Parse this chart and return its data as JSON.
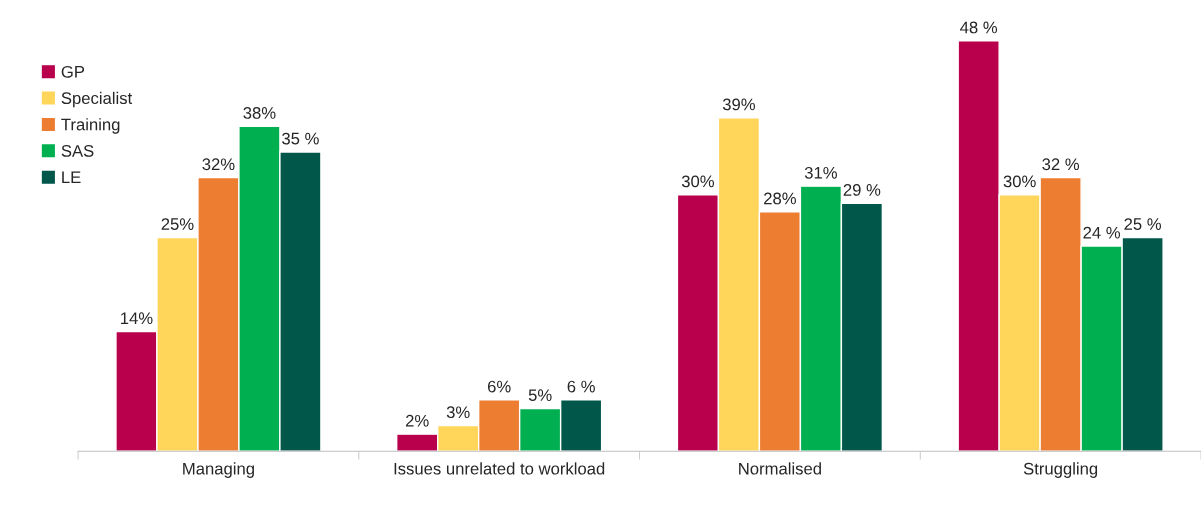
{
  "chart_data": {
    "type": "bar",
    "categories": [
      "Managing",
      "Issues unrelated to workload",
      "Normalised",
      "Struggling"
    ],
    "series": [
      {
        "name": "GP",
        "color": "#b8004c",
        "values": [
          14,
          2,
          30,
          48
        ],
        "value_labels": [
          "14%",
          "2%",
          "30%",
          "48 %"
        ]
      },
      {
        "name": "Specialist",
        "color": "#ffd55a",
        "values": [
          25,
          3,
          39,
          30
        ],
        "value_labels": [
          "25%",
          "3%",
          "39%",
          "30%"
        ]
      },
      {
        "name": "Training",
        "color": "#ed7d31",
        "values": [
          32,
          6,
          28,
          32
        ],
        "value_labels": [
          "32%",
          "6%",
          "28%",
          "32 %"
        ]
      },
      {
        "name": "SAS",
        "color": "#00b050",
        "values": [
          38,
          5,
          31,
          24
        ],
        "value_labels": [
          "38%",
          "5%",
          "31%",
          "24 %"
        ]
      },
      {
        "name": "LE",
        "color": "#00574a",
        "values": [
          35,
          6,
          29,
          25
        ],
        "value_labels": [
          "35 %",
          "6 %",
          "29 %",
          "25 %"
        ]
      }
    ],
    "tick_labels": "x",
    "grid": false,
    "legend": "top left"
  }
}
